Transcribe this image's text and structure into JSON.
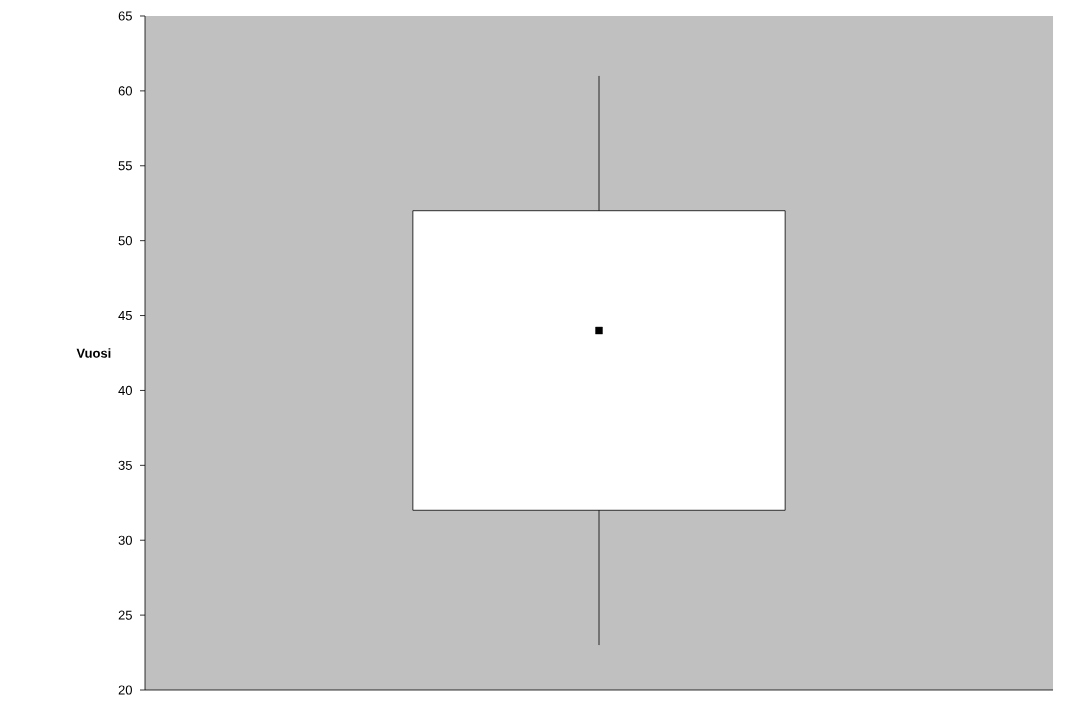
{
  "chart_data": {
    "type": "box",
    "categories": [
      null
    ],
    "ylabel": "Vuosi",
    "color": "#ffffff",
    "boxes": [
      {
        "low": 23,
        "q1": 32,
        "median": 44,
        "q3": 52,
        "high": 61
      }
    ],
    "ylim": [
      20,
      65
    ],
    "yticks": [
      20,
      25,
      30,
      35,
      40,
      45,
      50,
      55,
      60,
      65
    ],
    "grid": false,
    "marker": "square"
  }
}
